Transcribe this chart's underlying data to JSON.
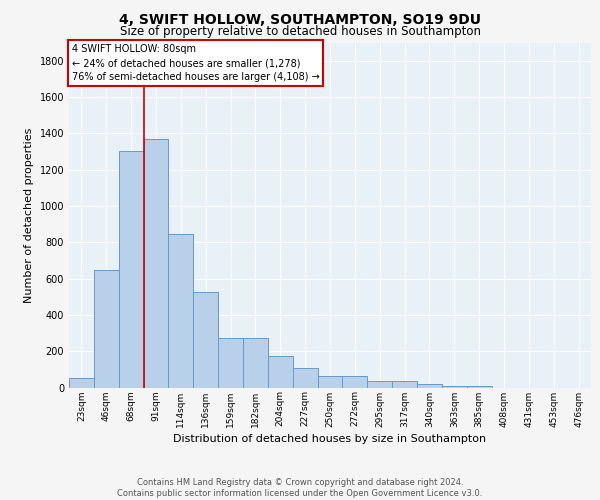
{
  "title1": "4, SWIFT HOLLOW, SOUTHAMPTON, SO19 9DU",
  "title2": "Size of property relative to detached houses in Southampton",
  "xlabel": "Distribution of detached houses by size in Southampton",
  "ylabel": "Number of detached properties",
  "categories": [
    "23sqm",
    "46sqm",
    "68sqm",
    "91sqm",
    "114sqm",
    "136sqm",
    "159sqm",
    "182sqm",
    "204sqm",
    "227sqm",
    "250sqm",
    "272sqm",
    "295sqm",
    "317sqm",
    "340sqm",
    "363sqm",
    "385sqm",
    "408sqm",
    "431sqm",
    "453sqm",
    "476sqm"
  ],
  "values": [
    55,
    645,
    1300,
    1370,
    845,
    525,
    275,
    275,
    175,
    105,
    65,
    65,
    38,
    35,
    22,
    10,
    10,
    0,
    0,
    0,
    0
  ],
  "bar_color": "#b8d0ea",
  "bar_edge_color": "#6699cc",
  "background_color": "#e8f0f8",
  "grid_color": "#ffffff",
  "annotation_box_text": "4 SWIFT HOLLOW: 80sqm\n← 24% of detached houses are smaller (1,278)\n76% of semi-detached houses are larger (4,108) →",
  "annotation_box_color": "#ffffff",
  "annotation_box_edge_color": "#cc0000",
  "red_line_x": 2.5,
  "ylim": [
    0,
    1900
  ],
  "yticks": [
    0,
    200,
    400,
    600,
    800,
    1000,
    1200,
    1400,
    1600,
    1800
  ],
  "footer": "Contains HM Land Registry data © Crown copyright and database right 2024.\nContains public sector information licensed under the Open Government Licence v3.0.",
  "title1_fontsize": 10,
  "title2_fontsize": 8.5,
  "xlabel_fontsize": 8,
  "ylabel_fontsize": 8,
  "footer_fontsize": 6,
  "ann_fontsize": 7,
  "tick_fontsize": 6.5,
  "ytick_fontsize": 7
}
